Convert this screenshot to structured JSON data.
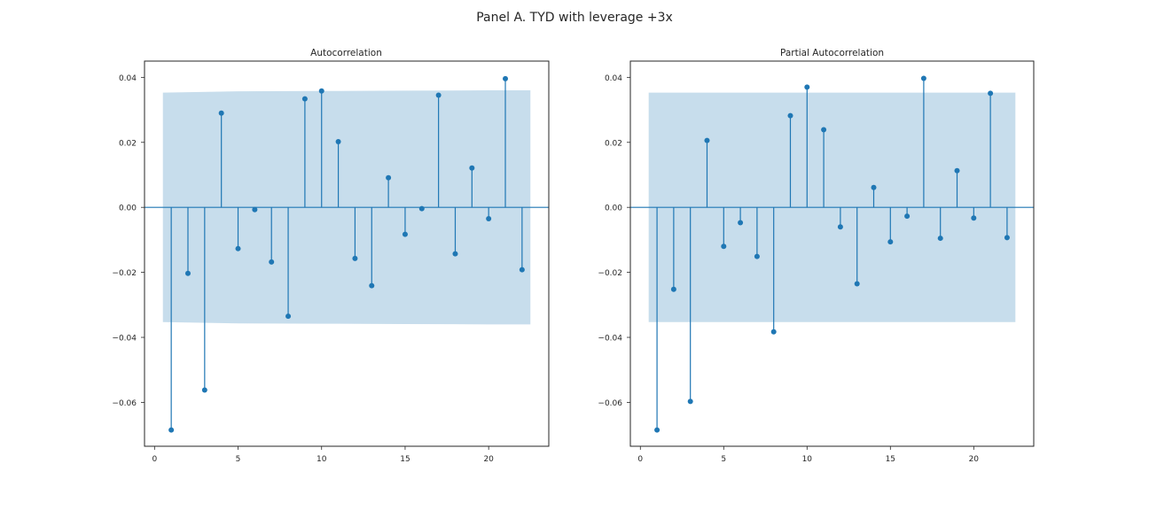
{
  "figure": {
    "title": "Panel A. TYD with leverage +3x"
  },
  "chart_data": [
    {
      "type": "stem",
      "title": "Autocorrelation",
      "xlabel": "",
      "ylabel": "",
      "xlim": [
        -0.6,
        23.6
      ],
      "ylim": [
        -0.0735,
        0.045
      ],
      "xticks": [
        0,
        5,
        10,
        15,
        20
      ],
      "yticks": [
        -0.06,
        -0.04,
        -0.02,
        0.0,
        0.02,
        0.04
      ],
      "ytick_labels": [
        "−0.06",
        "−0.04",
        "−0.02",
        "0.00",
        "0.02",
        "0.04"
      ],
      "grid": false,
      "lags": [
        1,
        2,
        3,
        4,
        5,
        6,
        7,
        8,
        9,
        10,
        11,
        12,
        13,
        14,
        15,
        16,
        17,
        18,
        19,
        20,
        21,
        22
      ],
      "values": [
        -0.0685,
        -0.0203,
        -0.0562,
        0.029,
        -0.0127,
        -0.0007,
        -0.0168,
        -0.0335,
        0.0334,
        0.0358,
        0.0202,
        -0.0157,
        -0.0241,
        0.0091,
        -0.0083,
        -0.0004,
        0.0345,
        -0.0143,
        0.0121,
        -0.0035,
        0.0396,
        -0.0192
      ],
      "confidence_band": {
        "lags": [
          0.5,
          5,
          10,
          15,
          20,
          22.5
        ],
        "upper": [
          0.0353,
          0.0357,
          0.0358,
          0.0359,
          0.036,
          0.036
        ],
        "lower": [
          -0.0353,
          -0.0357,
          -0.0358,
          -0.0359,
          -0.036,
          -0.036
        ]
      }
    },
    {
      "type": "stem",
      "title": "Partial Autocorrelation",
      "xlabel": "",
      "ylabel": "",
      "xlim": [
        -0.6,
        23.6
      ],
      "ylim": [
        -0.0735,
        0.045
      ],
      "xticks": [
        0,
        5,
        10,
        15,
        20
      ],
      "yticks": [
        -0.06,
        -0.04,
        -0.02,
        0.0,
        0.02,
        0.04
      ],
      "ytick_labels": [
        "−0.06",
        "−0.04",
        "−0.02",
        "0.00",
        "0.02",
        "0.04"
      ],
      "grid": false,
      "lags": [
        1,
        2,
        3,
        4,
        5,
        6,
        7,
        8,
        9,
        10,
        11,
        12,
        13,
        14,
        15,
        16,
        17,
        18,
        19,
        20,
        21,
        22
      ],
      "values": [
        -0.0685,
        -0.0252,
        -0.0597,
        0.0206,
        -0.012,
        -0.0047,
        -0.0151,
        -0.0383,
        0.0282,
        0.037,
        0.0239,
        -0.006,
        -0.0235,
        0.0061,
        -0.0106,
        -0.0027,
        0.0397,
        -0.0095,
        0.0113,
        -0.0033,
        0.0351,
        -0.0093
      ],
      "confidence_band": {
        "lags": [
          0.5,
          22.5
        ],
        "upper": [
          0.0353,
          0.0353
        ],
        "lower": [
          -0.0353,
          -0.0353
        ]
      }
    }
  ]
}
